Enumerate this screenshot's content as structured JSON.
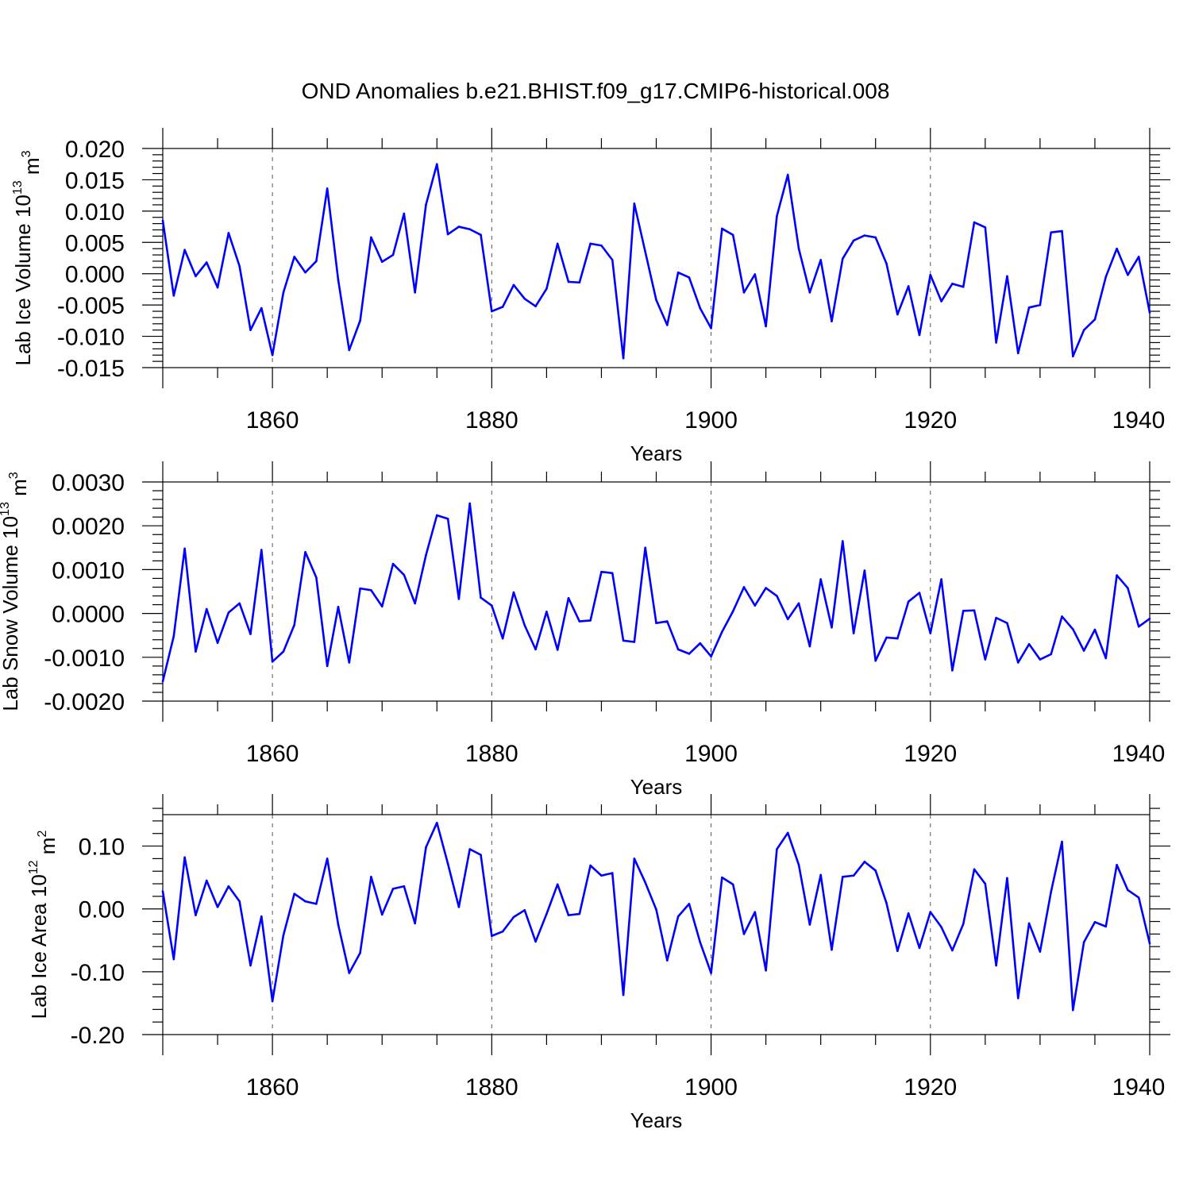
{
  "figure": {
    "title": "OND Anomalies b.e21.BHIST.f09_g17.CMIP6-historical.008"
  },
  "chart_data": [
    {
      "type": "line",
      "name": "ice-volume",
      "title": "",
      "xlabel": "Years",
      "ylabel_base": "Lab Ice Volume 10",
      "ylabel_exp": "13",
      "ylabel_unit": " m",
      "ylabel_unit_exp": "3",
      "xlim": [
        1850,
        1940
      ],
      "ylim": [
        -0.015,
        0.02
      ],
      "xticks": [
        1860,
        1880,
        1900,
        1920,
        1940
      ],
      "xtick_labels": [
        "1860",
        "1880",
        "1900",
        "1920",
        "1940"
      ],
      "yticks": [
        -0.015,
        -0.01,
        -0.005,
        0.0,
        0.005,
        0.01,
        0.015,
        0.02
      ],
      "ytick_labels": [
        "-0.015",
        "-0.010",
        "-0.005",
        "0.000",
        "0.005",
        "0.010",
        "0.015",
        "0.020"
      ],
      "y_minor_step": 0.001,
      "grid": "vertical dashed at major x ticks",
      "color": "#0000ff",
      "x_start": 1850,
      "values": [
        0.0085,
        -0.0035,
        0.0038,
        -0.0004,
        0.0018,
        -0.0022,
        0.0065,
        0.0012,
        -0.009,
        -0.0055,
        -0.013,
        -0.003,
        0.0027,
        0.0002,
        0.002,
        0.0136,
        -0.001,
        -0.0122,
        -0.0075,
        0.0058,
        0.0019,
        0.003,
        0.0096,
        -0.003,
        0.011,
        0.0175,
        0.0063,
        0.0075,
        0.0071,
        0.0062,
        -0.006,
        -0.0053,
        -0.0018,
        -0.004,
        -0.0052,
        -0.0024,
        0.0048,
        -0.0013,
        -0.0014,
        0.0048,
        0.0045,
        0.0022,
        -0.0135,
        0.0112,
        0.0035,
        -0.0042,
        -0.0082,
        0.0002,
        -0.0006,
        -0.0055,
        -0.0087,
        0.0072,
        0.0062,
        -0.003,
        -0.0001,
        -0.0084,
        0.0092,
        0.0158,
        0.004,
        -0.003,
        0.0022,
        -0.0076,
        0.0024,
        0.0053,
        0.0061,
        0.0058,
        0.0016,
        -0.0065,
        -0.002,
        -0.0098,
        -0.0002,
        -0.0044,
        -0.0016,
        -0.0021,
        0.0082,
        0.0074,
        -0.011,
        -0.0004,
        -0.0127,
        -0.0054,
        -0.005,
        0.0066,
        0.0068,
        -0.0132,
        -0.009,
        -0.0073,
        -0.0005,
        0.004,
        -0.0002,
        0.0027,
        -0.0062
      ]
    },
    {
      "type": "line",
      "name": "snow-volume",
      "title": "",
      "xlabel": "Years",
      "ylabel_base": "Lab Snow Volume 10",
      "ylabel_exp": "13",
      "ylabel_unit": " m",
      "ylabel_unit_exp": "3",
      "xlim": [
        1850,
        1940
      ],
      "ylim": [
        -0.002,
        0.003
      ],
      "xticks": [
        1860,
        1880,
        1900,
        1920,
        1940
      ],
      "xtick_labels": [
        "1860",
        "1880",
        "1900",
        "1920",
        "1940"
      ],
      "yticks": [
        -0.002,
        -0.001,
        0.0,
        0.001,
        0.002,
        0.003
      ],
      "ytick_labels": [
        "-0.0020",
        "-0.0010",
        "0.0000",
        "0.0010",
        "0.0020",
        "0.0030"
      ],
      "y_minor_step": 0.0002,
      "grid": "vertical dashed at major x ticks",
      "color": "#0000ff",
      "x_start": 1850,
      "values": [
        -0.00155,
        -0.00052,
        0.00148,
        -0.00087,
        0.0001,
        -0.00067,
        2e-05,
        0.00023,
        -0.00047,
        0.00145,
        -0.0011,
        -0.00087,
        -0.00026,
        0.0014,
        0.00082,
        -0.0012,
        0.00015,
        -0.00112,
        0.00057,
        0.00053,
        0.00016,
        0.00113,
        0.00088,
        0.00023,
        0.00133,
        0.00224,
        0.00216,
        0.00033,
        0.00251,
        0.00036,
        0.00018,
        -0.00057,
        0.00048,
        -0.00027,
        -0.00082,
        4e-05,
        -0.00083,
        0.00035,
        -0.00018,
        -0.00016,
        0.00095,
        0.00092,
        -0.00062,
        -0.00065,
        0.0015,
        -0.00022,
        -0.00018,
        -0.00082,
        -0.00092,
        -0.00068,
        -0.00098,
        -0.00042,
        5e-05,
        0.0006,
        0.00018,
        0.00058,
        0.0004,
        -0.00013,
        0.00023,
        -0.00075,
        0.00078,
        -0.00032,
        0.00165,
        -0.00045,
        0.00098,
        -0.00108,
        -0.00055,
        -0.00057,
        0.00027,
        0.00047,
        -0.00045,
        0.00078,
        -0.0013,
        6e-05,
        7e-05,
        -0.00105,
        -0.0001,
        -0.00022,
        -0.00112,
        -0.0007,
        -0.00105,
        -0.00093,
        -7e-05,
        -0.00036,
        -0.00085,
        -0.00037,
        -0.00102,
        0.00087,
        0.00058,
        -0.0003,
        -0.00012
      ]
    },
    {
      "type": "line",
      "name": "ice-area",
      "title": "",
      "xlabel": "Years",
      "ylabel_base": "Lab Ice Area 10",
      "ylabel_exp": "12",
      "ylabel_unit": " m",
      "ylabel_unit_exp": "2",
      "xlim": [
        1850,
        1940
      ],
      "ylim": [
        -0.2,
        0.15
      ],
      "xticks": [
        1860,
        1880,
        1900,
        1920,
        1940
      ],
      "xtick_labels": [
        "1860",
        "1880",
        "1900",
        "1920",
        "1940"
      ],
      "yticks": [
        -0.2,
        -0.1,
        0.0,
        0.1
      ],
      "ytick_labels": [
        "-0.20",
        "-0.10",
        "0.00",
        "0.10"
      ],
      "y_minor_step": 0.02,
      "grid": "vertical dashed at major x ticks",
      "color": "#0000ff",
      "x_start": 1850,
      "values": [
        0.028,
        -0.08,
        0.082,
        -0.01,
        0.045,
        0.003,
        0.036,
        0.012,
        -0.09,
        -0.012,
        -0.147,
        -0.042,
        0.024,
        0.012,
        0.008,
        0.08,
        -0.025,
        -0.102,
        -0.07,
        0.051,
        -0.009,
        0.032,
        0.036,
        -0.023,
        0.098,
        0.137,
        0.072,
        0.003,
        0.095,
        0.086,
        -0.043,
        -0.036,
        -0.013,
        -0.002,
        -0.052,
        -0.008,
        0.039,
        -0.01,
        -0.008,
        0.069,
        0.053,
        0.057,
        -0.137,
        0.08,
        0.042,
        -0.001,
        -0.082,
        -0.012,
        0.008,
        -0.053,
        -0.102,
        0.05,
        0.039,
        -0.04,
        -0.005,
        -0.098,
        0.095,
        0.121,
        0.07,
        -0.025,
        0.054,
        -0.065,
        0.051,
        0.053,
        0.075,
        0.061,
        0.009,
        -0.067,
        -0.007,
        -0.062,
        -0.005,
        -0.029,
        -0.066,
        -0.024,
        0.063,
        0.04,
        -0.09,
        0.049,
        -0.142,
        -0.023,
        -0.068,
        0.027,
        0.107,
        -0.161,
        -0.053,
        -0.021,
        -0.028,
        0.07,
        0.03,
        0.018,
        -0.055
      ]
    }
  ]
}
